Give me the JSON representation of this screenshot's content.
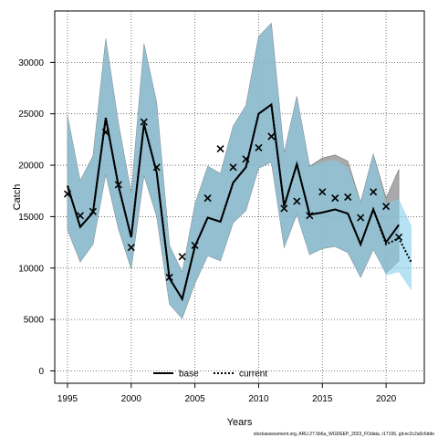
{
  "chart_data": {
    "type": "line",
    "xlabel": "Years",
    "ylabel": "Catch",
    "xlim": [
      1994,
      2023
    ],
    "ylim": [
      -1200,
      35000
    ],
    "xticks": [
      1995,
      2000,
      2005,
      2010,
      2015,
      2020
    ],
    "yticks": [
      0,
      5000,
      10000,
      15000,
      20000,
      25000,
      30000
    ],
    "grid": true,
    "legend_position": "bottom-center",
    "x": [
      1995,
      1996,
      1997,
      1998,
      1999,
      2000,
      2001,
      2002,
      2003,
      2004,
      2005,
      2006,
      2007,
      2008,
      2009,
      2010,
      2011,
      2012,
      2013,
      2014,
      2015,
      2016,
      2017,
      2018,
      2019,
      2020,
      2021,
      2022
    ],
    "observed": {
      "x": [
        1995,
        1996,
        1997,
        1998,
        1999,
        2000,
        2001,
        2002,
        2003,
        2004,
        2005,
        2006,
        2007,
        2008,
        2009,
        2010,
        2011,
        2012,
        2013,
        2014,
        2015,
        2016,
        2017,
        2018,
        2019,
        2020,
        2021
      ],
      "values": [
        17200,
        15100,
        15500,
        23200,
        18100,
        12000,
        24200,
        19800,
        9100,
        11100,
        12200,
        16800,
        21600,
        19800,
        20600,
        21700,
        22800,
        15800,
        16500,
        15100,
        17400,
        16800,
        16900,
        14900,
        17400,
        16000,
        13000
      ]
    },
    "series": [
      {
        "name": "base",
        "color": "#000000",
        "style": "solid",
        "values": [
          18000,
          14000,
          15400,
          24600,
          18000,
          13000,
          24000,
          19300,
          9000,
          7000,
          12100,
          14900,
          14500,
          18300,
          19800,
          25000,
          25900,
          16000,
          20100,
          15200,
          15400,
          15700,
          15300,
          12300,
          15700,
          12500,
          14200,
          null
        ],
        "lower": [
          13700,
          10600,
          12300,
          19100,
          13800,
          9900,
          19000,
          15000,
          6500,
          5100,
          8500,
          11200,
          10700,
          14400,
          15600,
          19700,
          20300,
          12000,
          15200,
          11300,
          11900,
          12100,
          11500,
          9100,
          11800,
          9500,
          10700,
          null
        ],
        "upper": [
          24800,
          18500,
          20900,
          32300,
          24100,
          17300,
          31800,
          26100,
          12200,
          9600,
          16200,
          19900,
          19200,
          23800,
          25800,
          32500,
          33800,
          21200,
          26700,
          19900,
          20700,
          21000,
          20400,
          16400,
          21100,
          16800,
          19600,
          null
        ]
      },
      {
        "name": "current",
        "color": "#000000",
        "style": "dotted",
        "values": [
          18000,
          14000,
          15400,
          24600,
          18000,
          13000,
          24000,
          19300,
          9000,
          7000,
          12100,
          14900,
          14500,
          18300,
          19800,
          25000,
          25900,
          16000,
          20100,
          15200,
          15400,
          15700,
          15300,
          12300,
          15700,
          12300,
          12900,
          10500
        ],
        "lower": [
          13700,
          10600,
          12300,
          19100,
          13800,
          9900,
          19000,
          15000,
          6500,
          5100,
          8500,
          11200,
          10700,
          14400,
          15600,
          19700,
          20300,
          12000,
          15200,
          11300,
          11900,
          12100,
          11500,
          9100,
          11800,
          9300,
          9600,
          7800
        ],
        "upper": [
          24800,
          18500,
          20900,
          32300,
          24100,
          17300,
          31800,
          26100,
          12200,
          9600,
          16200,
          19900,
          19200,
          23800,
          25800,
          32500,
          33800,
          21200,
          26700,
          19900,
          20300,
          20500,
          19800,
          16400,
          21100,
          16300,
          16700,
          14100
        ]
      }
    ],
    "colors": {
      "base_band": "#8c8c8c",
      "current_band": "#87ceeb",
      "grid": "#555555",
      "axis": "#000000"
    },
    "footnote": "stockassessment.org, ARU.27.5b6a_WGDEEP_2023_FOdata, r17106, git:ec2c2a0c6dde"
  }
}
